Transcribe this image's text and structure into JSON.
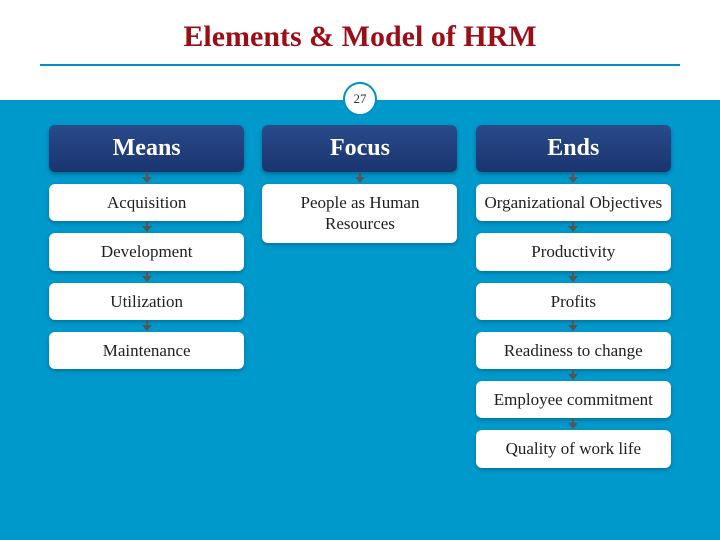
{
  "slide": {
    "title": "Elements & Model of HRM",
    "number": "27",
    "title_color": "#9b0e18",
    "underline_color": "#0090c8",
    "circle_border_color": "#0090c8",
    "background_color": "#0099cc",
    "header_gradient_top": "#2a4a8a",
    "header_gradient_bottom": "#1a3570",
    "item_background": "#ffffff",
    "title_fontsize": 30,
    "header_fontsize": 24,
    "item_fontsize": 17
  },
  "columns": [
    {
      "header": "Means",
      "items": [
        "Acquisition",
        "Development",
        "Utilization",
        "Maintenance"
      ]
    },
    {
      "header": "Focus",
      "items": [
        "People as Human Resources"
      ]
    },
    {
      "header": "Ends",
      "items": [
        "Organizational Objectives",
        "Productivity",
        "Profits",
        "Readiness to change",
        "Employee commitment",
        "Quality of work life"
      ]
    }
  ]
}
